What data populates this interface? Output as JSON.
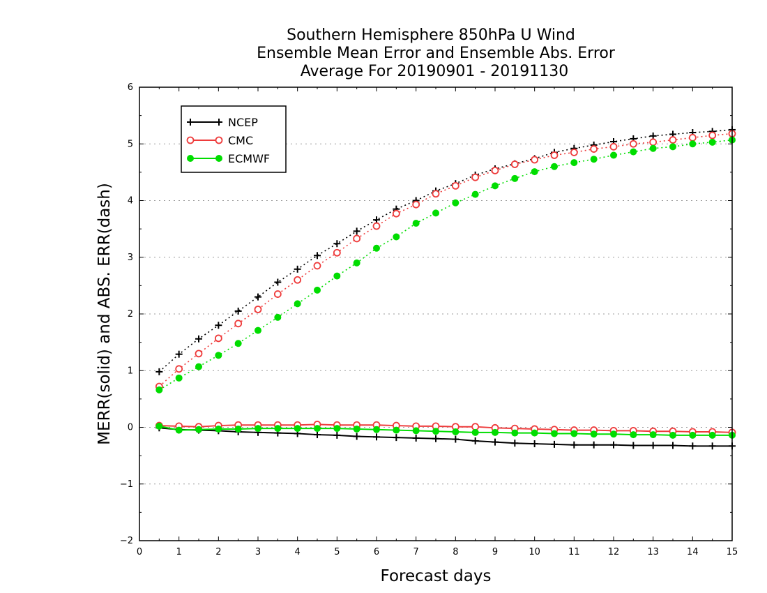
{
  "chart_data": {
    "type": "line",
    "title": [
      "Southern Hemisphere 850hPa U Wind",
      "Ensemble Mean Error and Ensemble Abs. Error",
      "Average For 20190901 - 20191130"
    ],
    "xlabel": "Forecast days",
    "ylabel": "MERR(solid) and ABS. ERR(dash)",
    "xlim": [
      0,
      15
    ],
    "ylim": [
      -2,
      6
    ],
    "xticks": [
      "0",
      "1",
      "2",
      "3",
      "4",
      "5",
      "6",
      "7",
      "8",
      "9",
      "10",
      "11",
      "12",
      "13",
      "14",
      "15"
    ],
    "yticks": [
      "6",
      "5",
      "4",
      "3",
      "2",
      "1",
      "0",
      "−1",
      "−2"
    ],
    "grid": "horizontal dotted",
    "legend_position": "top-left",
    "x": [
      0.5,
      1,
      1.5,
      2,
      2.5,
      3,
      3.5,
      4,
      4.5,
      5,
      5.5,
      6,
      6.5,
      7,
      7.5,
      8,
      8.5,
      9,
      9.5,
      10,
      10.5,
      11,
      11.5,
      12,
      12.5,
      13,
      13.5,
      14,
      14.5,
      15
    ],
    "series": [
      {
        "name": "NCEP",
        "color": "#000000",
        "marker": "plus",
        "abs_err": [
          0.98,
          1.29,
          1.56,
          1.8,
          2.05,
          2.3,
          2.56,
          2.79,
          3.03,
          3.24,
          3.46,
          3.66,
          3.85,
          4.0,
          4.17,
          4.3,
          4.45,
          4.56,
          4.65,
          4.74,
          4.85,
          4.92,
          4.98,
          5.04,
          5.09,
          5.14,
          5.17,
          5.2,
          5.22,
          5.25
        ],
        "merr": [
          -0.01,
          -0.04,
          -0.05,
          -0.06,
          -0.08,
          -0.09,
          -0.1,
          -0.11,
          -0.13,
          -0.14,
          -0.16,
          -0.17,
          -0.18,
          -0.19,
          -0.2,
          -0.21,
          -0.24,
          -0.26,
          -0.28,
          -0.29,
          -0.3,
          -0.31,
          -0.31,
          -0.31,
          -0.32,
          -0.32,
          -0.32,
          -0.33,
          -0.33,
          -0.33
        ]
      },
      {
        "name": "CMC",
        "color": "#ee3b3b",
        "marker": "open-circle",
        "abs_err": [
          0.72,
          1.03,
          1.3,
          1.57,
          1.83,
          2.08,
          2.35,
          2.6,
          2.85,
          3.08,
          3.33,
          3.55,
          3.77,
          3.93,
          4.12,
          4.26,
          4.41,
          4.53,
          4.64,
          4.72,
          4.8,
          4.85,
          4.91,
          4.95,
          5.0,
          5.03,
          5.07,
          5.11,
          5.15,
          5.18
        ],
        "merr": [
          0.03,
          0.02,
          0.01,
          0.03,
          0.04,
          0.04,
          0.04,
          0.04,
          0.05,
          0.04,
          0.04,
          0.04,
          0.03,
          0.02,
          0.02,
          0.01,
          0.01,
          -0.01,
          -0.02,
          -0.03,
          -0.04,
          -0.05,
          -0.05,
          -0.06,
          -0.06,
          -0.07,
          -0.07,
          -0.08,
          -0.08,
          -0.09
        ]
      },
      {
        "name": "ECMWF",
        "color": "#00dd00",
        "marker": "filled-circle",
        "abs_err": [
          0.66,
          0.87,
          1.07,
          1.27,
          1.48,
          1.71,
          1.94,
          2.18,
          2.42,
          2.67,
          2.9,
          3.16,
          3.36,
          3.6,
          3.78,
          3.96,
          4.11,
          4.26,
          4.39,
          4.51,
          4.6,
          4.67,
          4.73,
          4.8,
          4.86,
          4.92,
          4.95,
          5.0,
          5.03,
          5.07
        ],
        "merr": [
          0.02,
          -0.05,
          -0.04,
          -0.03,
          -0.03,
          -0.02,
          -0.02,
          -0.02,
          -0.02,
          -0.02,
          -0.03,
          -0.04,
          -0.05,
          -0.06,
          -0.07,
          -0.08,
          -0.09,
          -0.09,
          -0.1,
          -0.1,
          -0.11,
          -0.11,
          -0.12,
          -0.12,
          -0.13,
          -0.13,
          -0.14,
          -0.14,
          -0.14,
          -0.14
        ]
      }
    ]
  }
}
